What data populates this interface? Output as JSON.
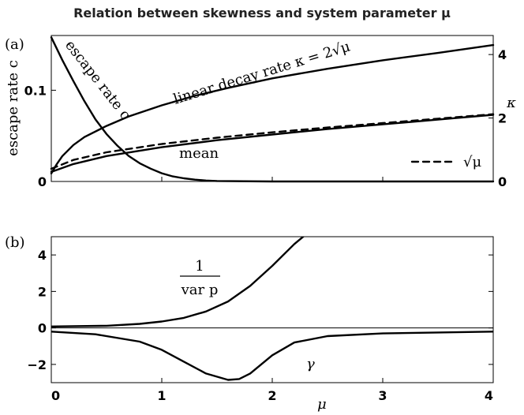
{
  "title": "Relation between skewness and system parameter μ",
  "chart_data": [
    {
      "panel": "(a)",
      "type": "line",
      "xlim": [
        0,
        4
      ],
      "ylim_left": [
        0,
        0.16
      ],
      "ylim_right": [
        0,
        4.6
      ],
      "ylabel_left": "escape rate c",
      "ylabel_right": "κ",
      "left_ticks": [
        "0",
        "0.1"
      ],
      "right_ticks": [
        "0",
        "2",
        "4"
      ],
      "left_tick_values": [
        0,
        0.1
      ],
      "right_tick_values": [
        0,
        2,
        4
      ],
      "legend": {
        "label": "√μ",
        "placement": "lower-right"
      },
      "series": [
        {
          "name": "escape rate c",
          "axis": "left",
          "x": [
            0,
            0.1,
            0.2,
            0.3,
            0.4,
            0.5,
            0.6,
            0.7,
            0.8,
            0.9,
            1.0,
            1.1,
            1.2,
            1.3,
            1.4,
            1.5,
            2.0,
            2.5,
            3.0,
            4.0
          ],
          "y": [
            0.158,
            0.133,
            0.11,
            0.088,
            0.068,
            0.052,
            0.039,
            0.028,
            0.02,
            0.014,
            0.009,
            0.0055,
            0.0035,
            0.002,
            0.001,
            0.0005,
            0,
            0,
            0,
            0
          ]
        },
        {
          "name": "linear decay rate κ = 2√μ",
          "axis": "right",
          "x": [
            0,
            0.05,
            0.1,
            0.2,
            0.3,
            0.5,
            0.7,
            1.0,
            1.3,
            1.6,
            2.0,
            2.5,
            3.0,
            3.5,
            4.0
          ],
          "y": [
            0.25,
            0.55,
            0.8,
            1.15,
            1.4,
            1.75,
            2.05,
            2.4,
            2.7,
            2.95,
            3.25,
            3.55,
            3.82,
            4.05,
            4.3
          ]
        },
        {
          "name": "mean",
          "axis": "right",
          "x": [
            0,
            0.2,
            0.5,
            1.0,
            1.5,
            2.0,
            2.5,
            3.0,
            3.5,
            4.0
          ],
          "y": [
            0.3,
            0.55,
            0.8,
            1.08,
            1.3,
            1.48,
            1.65,
            1.8,
            1.95,
            2.1
          ]
        },
        {
          "name": "√μ",
          "axis": "right",
          "style": "dashed",
          "x": [
            0,
            0.2,
            0.5,
            1.0,
            1.5,
            2.0,
            2.5,
            3.0,
            3.5,
            4.0
          ],
          "y": [
            0.4,
            0.68,
            0.92,
            1.18,
            1.38,
            1.55,
            1.7,
            1.84,
            1.98,
            2.12
          ]
        }
      ]
    },
    {
      "panel": "(b)",
      "type": "line",
      "xlim": [
        0,
        4
      ],
      "ylim": [
        -3,
        5
      ],
      "xlabel": "μ",
      "x_ticks": [
        "0",
        "1",
        "2",
        "3",
        "4"
      ],
      "x_tick_values": [
        0,
        1,
        2,
        3,
        4
      ],
      "y_ticks": [
        "−2",
        "0",
        "2",
        "4"
      ],
      "y_tick_values": [
        -2,
        0,
        2,
        4
      ],
      "zero_line": true,
      "series": [
        {
          "name": "1 / var p",
          "label_numerator": "1",
          "label_denominator": "var p",
          "x": [
            0,
            0.5,
            0.8,
            1.0,
            1.2,
            1.4,
            1.6,
            1.8,
            2.0,
            2.2,
            2.3
          ],
          "y": [
            0.08,
            0.12,
            0.22,
            0.35,
            0.55,
            0.9,
            1.45,
            2.3,
            3.4,
            4.6,
            5.1
          ]
        },
        {
          "name": "γ",
          "x": [
            0,
            0.4,
            0.8,
            1.0,
            1.2,
            1.4,
            1.6,
            1.7,
            1.8,
            2.0,
            2.2,
            2.5,
            3.0,
            3.5,
            4.0
          ],
          "y": [
            -0.2,
            -0.35,
            -0.75,
            -1.2,
            -1.85,
            -2.5,
            -2.85,
            -2.8,
            -2.5,
            -1.5,
            -0.8,
            -0.45,
            -0.3,
            -0.25,
            -0.2
          ]
        }
      ]
    }
  ]
}
